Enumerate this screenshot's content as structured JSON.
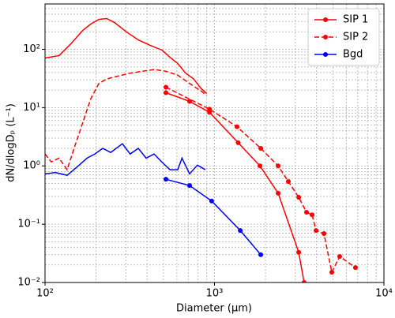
{
  "chart_data": {
    "type": "line",
    "xlabel": "Diameter (µm)",
    "ylabel": "dN/dlogDₚ (L⁻¹)",
    "xscale": "log",
    "yscale": "log",
    "grid": true,
    "legend": "upper right",
    "xlim": [
      100,
      10000
    ],
    "ylim": [
      0.01,
      600
    ],
    "xticks": [
      {
        "value": 100,
        "label": "10²"
      },
      {
        "value": 1000,
        "label": "10³"
      },
      {
        "value": 10000,
        "label": "10⁴"
      }
    ],
    "yticks": [
      {
        "value": 0.01,
        "label": "10⁻²"
      },
      {
        "value": 0.1,
        "label": "10⁻¹"
      },
      {
        "value": 1,
        "label": "10⁰"
      },
      {
        "value": 10,
        "label": "10¹"
      },
      {
        "value": 100,
        "label": "10²"
      }
    ],
    "xminorticks": [
      200,
      300,
      400,
      500,
      600,
      700,
      800,
      900,
      2000,
      3000,
      4000,
      5000,
      6000,
      7000,
      8000,
      9000
    ],
    "yminorticks": [
      0.02,
      0.03,
      0.04,
      0.05,
      0.06,
      0.07,
      0.08,
      0.09,
      0.2,
      0.3,
      0.4,
      0.5,
      0.6,
      0.7,
      0.8,
      0.9,
      2,
      3,
      4,
      5,
      6,
      7,
      8,
      9,
      20,
      30,
      40,
      50,
      60,
      70,
      80,
      90,
      200,
      300,
      400,
      500
    ],
    "series": [
      {
        "name": "SIP 1",
        "color": "#ff0000",
        "linestyle": "solid",
        "x": [
          100,
          121,
          142,
          167,
          186,
          208,
          231,
          257,
          303,
          355,
          417,
          490,
          546,
          607,
          676,
          753,
          837,
          901
        ],
        "values": [
          71,
          78,
          124,
          211,
          271,
          326,
          337,
          288,
          198,
          145,
          117,
          97,
          73,
          57,
          39,
          31,
          21,
          17.5
        ],
        "marker_x": [
          517,
          713,
          935,
          1380,
          1855,
          2375,
          3140,
          3380
        ],
        "marker_values": [
          18,
          12.8,
          8.3,
          2.5,
          1.0,
          0.34,
          0.033,
          0.01
        ]
      },
      {
        "name": "SIP 2",
        "color": "#ff0000",
        "linestyle": "dashed",
        "x": [
          100,
          109,
          121,
          135,
          150,
          167,
          186,
          208,
          231,
          272,
          319,
          375,
          440,
          517,
          607,
          713,
          837,
          901
        ],
        "values": [
          1.6,
          1.17,
          1.36,
          0.86,
          2.2,
          5.5,
          14.1,
          26,
          31,
          35,
          39,
          42,
          45,
          42,
          36,
          26,
          19,
          16.4
        ],
        "marker_x": [
          517,
          935,
          1358,
          1876,
          2374,
          2728,
          3140,
          3493,
          3767,
          3975,
          4426,
          4924,
          5480,
          6790
        ],
        "marker_values": [
          22.4,
          9.4,
          4.7,
          2.0,
          1.0,
          0.54,
          0.29,
          0.16,
          0.145,
          0.078,
          0.069,
          0.015,
          0.028,
          0.018
        ]
      },
      {
        "name": "Bgd",
        "color": "#0000ff",
        "linestyle": "solid",
        "x": [
          100,
          115,
          135,
          159,
          177,
          197,
          219,
          244,
          286,
          318,
          355,
          395,
          440,
          490,
          546,
          607,
          643,
          713,
          793,
          883
        ],
        "values": [
          0.73,
          0.77,
          0.69,
          1.03,
          1.36,
          1.6,
          2.0,
          1.7,
          2.4,
          1.6,
          2.0,
          1.36,
          1.6,
          1.16,
          0.86,
          0.86,
          1.36,
          0.73,
          1.03,
          0.86
        ],
        "marker_x": [
          517,
          713,
          962,
          1420,
          1875
        ],
        "marker_values": [
          0.59,
          0.46,
          0.25,
          0.078,
          0.03
        ]
      }
    ]
  }
}
